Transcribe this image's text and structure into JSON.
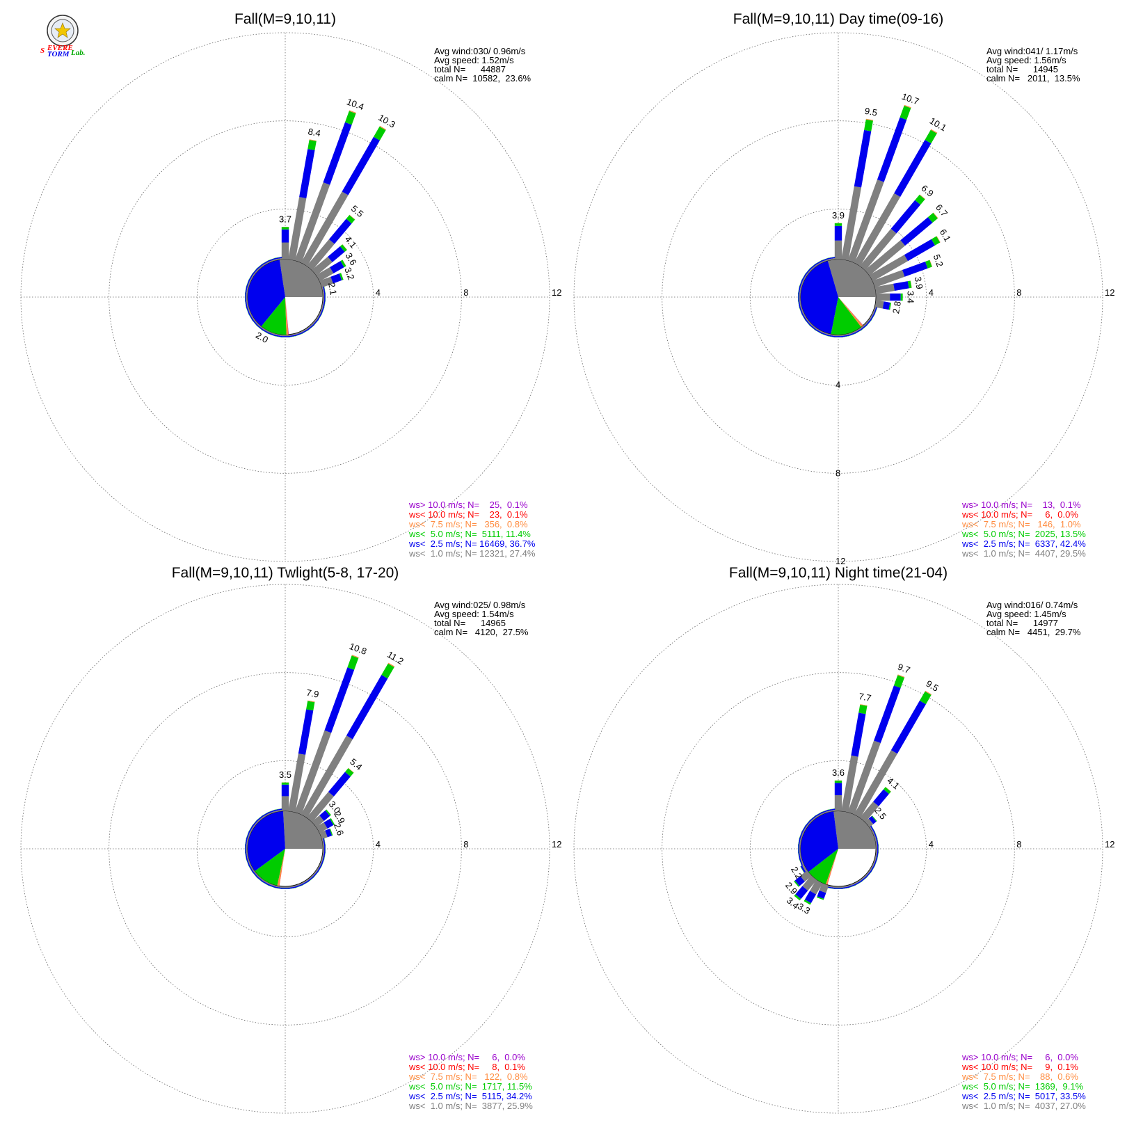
{
  "logo": {
    "text_s": "S",
    "text_evere": "EVERE",
    "text_torm": "TORM",
    "text_lab": "Lab."
  },
  "colors": {
    "gray": "#808080",
    "blue": "#0000ee",
    "green": "#00cc00",
    "orange": "#ff8c40",
    "red": "#ff0000",
    "purple": "#9900cc",
    "grid": "#666666"
  },
  "chart_data": [
    {
      "type": "windrose",
      "title": "Fall(M=9,10,11)",
      "ring_labels": [
        "4",
        "8",
        "12"
      ],
      "rmax": 12,
      "info": [
        "Avg wind:030/ 0.96m/s",
        "Avg speed: 1.52m/s",
        "total N=      44887",
        "calm N=  10582,  23.6%"
      ],
      "legend": [
        {
          "text": "ws> 10.0 m/s; N=    25,  0.1%",
          "color": "#9900cc"
        },
        {
          "text": "ws< 10.0 m/s; N=    23,  0.1%",
          "color": "#ff0000"
        },
        {
          "text": "ws<  7.5 m/s; N=   356,  0.8%",
          "color": "#ff8c40"
        },
        {
          "text": "ws<  5.0 m/s; N=  5111, 11.4%",
          "color": "#00cc00"
        },
        {
          "text": "ws<  2.5 m/s; N= 16469, 36.7%",
          "color": "#0000ee"
        },
        {
          "text": "ws<  1.0 m/s; N= 12321, 27.4%",
          "color": "#808080"
        }
      ],
      "pie": [
        0.274,
        0.367,
        0.114,
        0.008,
        0.001,
        0.001
      ],
      "bars": [
        {
          "dir": 0,
          "v": 3.7,
          "label": "3.7"
        },
        {
          "dir": 10,
          "v": 8.4,
          "label": "8.4"
        },
        {
          "dir": 20,
          "v": 10.4,
          "label": "10.4"
        },
        {
          "dir": 30,
          "v": 10.3,
          "label": "10.3"
        },
        {
          "dir": 40,
          "v": 5.5,
          "label": "5.5"
        },
        {
          "dir": 50,
          "v": 4.1,
          "label": "4.1"
        },
        {
          "dir": 60,
          "v": 3.6,
          "label": "3.6"
        },
        {
          "dir": 70,
          "v": 3.2,
          "label": "3.2"
        },
        {
          "dir": 80,
          "v": 2.1,
          "label": "2.1"
        },
        {
          "dir": 90,
          "v": 1.8
        },
        {
          "dir": 100,
          "v": 1.8
        },
        {
          "dir": 110,
          "v": 1.7
        },
        {
          "dir": 120,
          "v": 1.7
        },
        {
          "dir": 130,
          "v": 1.6
        },
        {
          "dir": 140,
          "v": 1.6
        },
        {
          "dir": 150,
          "v": 1.6
        },
        {
          "dir": 160,
          "v": 1.6
        },
        {
          "dir": 170,
          "v": 1.6
        },
        {
          "dir": 180,
          "v": 1.6
        },
        {
          "dir": 190,
          "v": 1.7
        },
        {
          "dir": 200,
          "v": 1.7
        },
        {
          "dir": 210,
          "v": 2.0,
          "label": "2.0"
        },
        {
          "dir": 220,
          "v": 2.0
        },
        {
          "dir": 230,
          "v": 2.0
        },
        {
          "dir": 240,
          "v": 1.9
        },
        {
          "dir": 250,
          "v": 1.9
        },
        {
          "dir": 260,
          "v": 1.9
        },
        {
          "dir": 270,
          "v": 1.9
        },
        {
          "dir": 280,
          "v": 1.8
        },
        {
          "dir": 290,
          "v": 1.8
        },
        {
          "dir": 300,
          "v": 1.8
        },
        {
          "dir": 310,
          "v": 1.8
        },
        {
          "dir": 320,
          "v": 1.8
        },
        {
          "dir": 330,
          "v": 1.8
        },
        {
          "dir": 340,
          "v": 1.8
        },
        {
          "dir": 350,
          "v": 2.0
        }
      ]
    },
    {
      "type": "windrose",
      "title": "Fall(M=9,10,11) Day time(09-16)",
      "ring_labels": [
        "4",
        "8",
        "12"
      ],
      "rmax": 12,
      "info": [
        "Avg wind:041/ 1.17m/s",
        "Avg speed: 1.56m/s",
        "total N=      14945",
        "calm N=   2011,  13.5%"
      ],
      "legend": [
        {
          "text": "ws> 10.0 m/s; N=    13,  0.1%",
          "color": "#9900cc"
        },
        {
          "text": "ws< 10.0 m/s; N=     6,  0.0%",
          "color": "#ff0000"
        },
        {
          "text": "ws<  7.5 m/s; N=   146,  1.0%",
          "color": "#ff8c40"
        },
        {
          "text": "ws<  5.0 m/s; N=  2025, 13.5%",
          "color": "#00cc00"
        },
        {
          "text": "ws<  2.5 m/s; N=  6337, 42.4%",
          "color": "#0000ee"
        },
        {
          "text": "ws<  1.0 m/s; N=  4407, 29.5%",
          "color": "#808080"
        }
      ],
      "pie": [
        0.295,
        0.424,
        0.135,
        0.01,
        0.0,
        0.001
      ],
      "bars": [
        {
          "dir": 0,
          "v": 3.9,
          "label": "3.9"
        },
        {
          "dir": 10,
          "v": 9.5,
          "label": "9.5"
        },
        {
          "dir": 20,
          "v": 10.7,
          "label": "10.7"
        },
        {
          "dir": 30,
          "v": 10.1,
          "label": "10.1"
        },
        {
          "dir": 40,
          "v": 6.9,
          "label": "6.9"
        },
        {
          "dir": 50,
          "v": 6.7,
          "label": "6.7"
        },
        {
          "dir": 60,
          "v": 6.1,
          "label": "6.1"
        },
        {
          "dir": 70,
          "v": 5.2,
          "label": "5.2"
        },
        {
          "dir": 80,
          "v": 3.9,
          "label": "3.9"
        },
        {
          "dir": 90,
          "v": 3.4,
          "label": "3.4"
        },
        {
          "dir": 100,
          "v": 2.8,
          "label": "2.8"
        },
        {
          "dir": 110,
          "v": 2.0
        },
        {
          "dir": 120,
          "v": 1.8
        },
        {
          "dir": 130,
          "v": 1.7
        },
        {
          "dir": 140,
          "v": 1.6
        },
        {
          "dir": 150,
          "v": 1.6
        },
        {
          "dir": 160,
          "v": 1.6
        },
        {
          "dir": 170,
          "v": 1.6
        },
        {
          "dir": 180,
          "v": 1.6
        },
        {
          "dir": 190,
          "v": 1.6
        },
        {
          "dir": 200,
          "v": 1.6
        },
        {
          "dir": 210,
          "v": 1.6
        },
        {
          "dir": 220,
          "v": 1.6
        },
        {
          "dir": 230,
          "v": 1.6
        },
        {
          "dir": 240,
          "v": 1.6
        },
        {
          "dir": 250,
          "v": 1.6
        },
        {
          "dir": 260,
          "v": 1.6
        },
        {
          "dir": 270,
          "v": 1.6
        },
        {
          "dir": 280,
          "v": 1.6
        },
        {
          "dir": 290,
          "v": 1.6
        },
        {
          "dir": 300,
          "v": 1.6
        },
        {
          "dir": 310,
          "v": 1.6
        },
        {
          "dir": 320,
          "v": 1.6
        },
        {
          "dir": 330,
          "v": 1.7
        },
        {
          "dir": 340,
          "v": 1.8
        },
        {
          "dir": 350,
          "v": 2.0
        }
      ]
    },
    {
      "type": "windrose",
      "title": "Fall(M=9,10,11) Twlight(5-8, 17-20)",
      "ring_labels": [
        "4",
        "8",
        "12"
      ],
      "rmax": 12,
      "info": [
        "Avg wind:025/ 0.98m/s",
        "Avg speed: 1.54m/s",
        "total N=      14965",
        "calm N=   4120,  27.5%"
      ],
      "legend": [
        {
          "text": "ws> 10.0 m/s; N=     6,  0.0%",
          "color": "#9900cc"
        },
        {
          "text": "ws< 10.0 m/s; N=     8,  0.1%",
          "color": "#ff0000"
        },
        {
          "text": "ws<  7.5 m/s; N=   122,  0.8%",
          "color": "#ff8c40"
        },
        {
          "text": "ws<  5.0 m/s; N=  1717, 11.5%",
          "color": "#00cc00"
        },
        {
          "text": "ws<  2.5 m/s; N=  5115, 34.2%",
          "color": "#0000ee"
        },
        {
          "text": "ws<  1.0 m/s; N=  3877, 25.9%",
          "color": "#808080"
        }
      ],
      "pie": [
        0.259,
        0.342,
        0.115,
        0.008,
        0.001,
        0.0
      ],
      "bars": [
        {
          "dir": 0,
          "v": 3.5,
          "label": "3.5"
        },
        {
          "dir": 10,
          "v": 7.9,
          "label": "7.9"
        },
        {
          "dir": 20,
          "v": 10.8,
          "label": "10.8"
        },
        {
          "dir": 30,
          "v": 11.2,
          "label": "11.2"
        },
        {
          "dir": 40,
          "v": 5.4,
          "label": "5.4"
        },
        {
          "dir": 50,
          "v": 3.0,
          "label": "3.0"
        },
        {
          "dir": 60,
          "v": 2.9,
          "label": "2.9"
        },
        {
          "dir": 70,
          "v": 2.6,
          "label": "2.6"
        },
        {
          "dir": 80,
          "v": 2.0
        },
        {
          "dir": 90,
          "v": 1.7
        },
        {
          "dir": 100,
          "v": 1.7
        },
        {
          "dir": 110,
          "v": 1.6
        },
        {
          "dir": 120,
          "v": 1.6
        },
        {
          "dir": 130,
          "v": 1.6
        },
        {
          "dir": 140,
          "v": 1.6
        },
        {
          "dir": 150,
          "v": 1.6
        },
        {
          "dir": 160,
          "v": 1.6
        },
        {
          "dir": 170,
          "v": 1.6
        },
        {
          "dir": 180,
          "v": 1.6
        },
        {
          "dir": 190,
          "v": 1.6
        },
        {
          "dir": 200,
          "v": 1.6
        },
        {
          "dir": 210,
          "v": 1.9
        },
        {
          "dir": 220,
          "v": 2.0
        },
        {
          "dir": 230,
          "v": 2.0
        },
        {
          "dir": 240,
          "v": 2.0
        },
        {
          "dir": 250,
          "v": 1.9
        },
        {
          "dir": 260,
          "v": 1.9
        },
        {
          "dir": 270,
          "v": 1.9
        },
        {
          "dir": 280,
          "v": 1.8
        },
        {
          "dir": 290,
          "v": 1.8
        },
        {
          "dir": 300,
          "v": 1.8
        },
        {
          "dir": 310,
          "v": 1.8
        },
        {
          "dir": 320,
          "v": 1.8
        },
        {
          "dir": 330,
          "v": 1.8
        },
        {
          "dir": 340,
          "v": 1.8
        },
        {
          "dir": 350,
          "v": 2.0
        }
      ]
    },
    {
      "type": "windrose",
      "title": "Fall(M=9,10,11) Night time(21-04)",
      "ring_labels": [
        "4",
        "8",
        "12"
      ],
      "rmax": 12,
      "info": [
        "Avg wind:016/ 0.74m/s",
        "Avg speed: 1.45m/s",
        "total N=      14977",
        "calm N=   4451,  29.7%"
      ],
      "legend": [
        {
          "text": "ws> 10.0 m/s; N=     6,  0.0%",
          "color": "#9900cc"
        },
        {
          "text": "ws< 10.0 m/s; N=     9,  0.1%",
          "color": "#ff0000"
        },
        {
          "text": "ws<  7.5 m/s; N=    88,  0.6%",
          "color": "#ff8c40"
        },
        {
          "text": "ws<  5.0 m/s; N=  1369,  9.1%",
          "color": "#00cc00"
        },
        {
          "text": "ws<  2.5 m/s; N=  5017, 33.5%",
          "color": "#0000ee"
        },
        {
          "text": "ws<  1.0 m/s; N=  4037, 27.0%",
          "color": "#808080"
        }
      ],
      "pie": [
        0.27,
        0.335,
        0.091,
        0.006,
        0.001,
        0.0
      ],
      "bars": [
        {
          "dir": 0,
          "v": 3.6,
          "label": "3.6"
        },
        {
          "dir": 10,
          "v": 7.7,
          "label": "7.7"
        },
        {
          "dir": 20,
          "v": 9.7,
          "label": "9.7"
        },
        {
          "dir": 30,
          "v": 9.5,
          "label": "9.5"
        },
        {
          "dir": 40,
          "v": 4.1,
          "label": "4.1"
        },
        {
          "dir": 50,
          "v": 2.5,
          "label": "2.5"
        },
        {
          "dir": 60,
          "v": 2.0
        },
        {
          "dir": 70,
          "v": 1.9
        },
        {
          "dir": 80,
          "v": 1.7
        },
        {
          "dir": 90,
          "v": 1.6
        },
        {
          "dir": 100,
          "v": 1.6
        },
        {
          "dir": 110,
          "v": 1.6
        },
        {
          "dir": 120,
          "v": 1.6
        },
        {
          "dir": 130,
          "v": 1.6
        },
        {
          "dir": 140,
          "v": 1.6
        },
        {
          "dir": 150,
          "v": 1.6
        },
        {
          "dir": 160,
          "v": 1.6
        },
        {
          "dir": 170,
          "v": 1.6
        },
        {
          "dir": 180,
          "v": 1.6
        },
        {
          "dir": 190,
          "v": 1.9
        },
        {
          "dir": 200,
          "v": 2.8
        },
        {
          "dir": 210,
          "v": 3.3,
          "label": "3.3"
        },
        {
          "dir": 220,
          "v": 3.4,
          "label": "3.4"
        },
        {
          "dir": 230,
          "v": 2.9,
          "label": "2.9"
        },
        {
          "dir": 240,
          "v": 2.2,
          "label": "2.2"
        },
        {
          "dir": 250,
          "v": 2.0
        },
        {
          "dir": 260,
          "v": 1.9
        },
        {
          "dir": 270,
          "v": 1.9
        },
        {
          "dir": 280,
          "v": 1.8
        },
        {
          "dir": 290,
          "v": 1.8
        },
        {
          "dir": 300,
          "v": 1.8
        },
        {
          "dir": 310,
          "v": 1.8
        },
        {
          "dir": 320,
          "v": 1.9
        },
        {
          "dir": 330,
          "v": 1.9
        },
        {
          "dir": 340,
          "v": 2.0
        },
        {
          "dir": 350,
          "v": 2.0
        }
      ]
    }
  ]
}
